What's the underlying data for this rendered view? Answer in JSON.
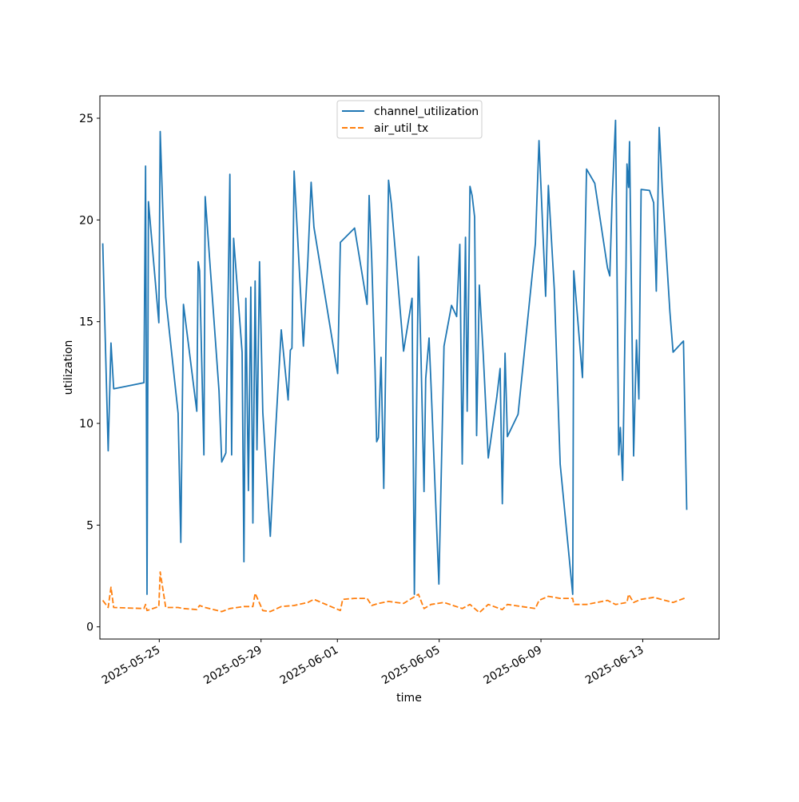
{
  "chart_data": {
    "type": "line",
    "xlabel": "time",
    "ylabel": "utilization",
    "xlim": [
      "2025-05-22T16:00",
      "2025-06-16T00:00"
    ],
    "ylim": [
      -0.6,
      26.1
    ],
    "x_tick_labels": [
      "2025-05-25",
      "2025-05-29",
      "2025-06-01",
      "2025-06-05",
      "2025-06-09",
      "2025-06-13"
    ],
    "x_ticks": [
      "2025-05-25",
      "2025-05-29",
      "2025-06-01",
      "2025-06-05",
      "2025-06-09",
      "2025-06-13"
    ],
    "y_ticks": [
      0,
      5,
      10,
      15,
      20,
      25
    ],
    "grid": false,
    "legend_position": "top-center",
    "series": [
      {
        "name": "channel_utilization",
        "color": "#1f77b4",
        "style": "solid",
        "points": [
          [
            "2025-05-22T18:41",
            18.85
          ],
          [
            "2025-05-22T23:50",
            8.65
          ],
          [
            "2025-05-23T02:27",
            13.95
          ],
          [
            "2025-05-23T05:01",
            11.7
          ],
          [
            "2025-05-24T09:30",
            12.0
          ],
          [
            "2025-05-24T11:07",
            22.65
          ],
          [
            "2025-05-24T12:27",
            1.6
          ],
          [
            "2025-05-24T13:47",
            20.9
          ],
          [
            "2025-05-24T23:36",
            14.95
          ],
          [
            "2025-05-25T00:55",
            24.35
          ],
          [
            "2025-05-25T06:05",
            16.2
          ],
          [
            "2025-05-25T17:47",
            10.5
          ],
          [
            "2025-05-25T20:21",
            4.15
          ],
          [
            "2025-05-25T22:48",
            15.85
          ],
          [
            "2025-05-26T11:25",
            10.6
          ],
          [
            "2025-05-26T12:43",
            17.95
          ],
          [
            "2025-05-26T14:02",
            17.5
          ],
          [
            "2025-05-26T18:05",
            8.45
          ],
          [
            "2025-05-26T19:21",
            21.15
          ],
          [
            "2025-05-27T08:21",
            11.6
          ],
          [
            "2025-05-27T10:57",
            8.1
          ],
          [
            "2025-05-27T14:48",
            8.55
          ],
          [
            "2025-05-27T18:38",
            22.25
          ],
          [
            "2025-05-27T20:17",
            8.45
          ],
          [
            "2025-05-27T22:10",
            19.1
          ],
          [
            "2025-05-28T06:07",
            13.5
          ],
          [
            "2025-05-28T07:50",
            3.2
          ],
          [
            "2025-05-28T09:42",
            16.15
          ],
          [
            "2025-05-28T12:05",
            6.7
          ],
          [
            "2025-05-28T14:19",
            16.7
          ],
          [
            "2025-05-28T16:20",
            5.1
          ],
          [
            "2025-05-28T18:26",
            17.0
          ],
          [
            "2025-05-28T20:11",
            8.7
          ],
          [
            "2025-05-28T22:34",
            17.95
          ],
          [
            "2025-05-29T01:40",
            10.55
          ],
          [
            "2025-05-29T08:46",
            4.45
          ],
          [
            "2025-05-29T12:31",
            8.5
          ],
          [
            "2025-05-29T19:02",
            14.6
          ],
          [
            "2025-05-30T01:31",
            11.15
          ],
          [
            "2025-05-30T03:39",
            13.6
          ],
          [
            "2025-05-30T05:11",
            13.7
          ],
          [
            "2025-05-30T07:12",
            22.4
          ],
          [
            "2025-05-30T15:56",
            13.8
          ],
          [
            "2025-05-30T20:09",
            18.0
          ],
          [
            "2025-05-30T23:16",
            21.85
          ],
          [
            "2025-05-31T01:52",
            19.65
          ],
          [
            "2025-06-01T00:17",
            12.45
          ],
          [
            "2025-06-01T02:49",
            18.9
          ],
          [
            "2025-06-01T16:14",
            19.6
          ],
          [
            "2025-06-02T03:59",
            15.85
          ],
          [
            "2025-06-02T05:58",
            21.2
          ],
          [
            "2025-06-02T08:23",
            18.1
          ],
          [
            "2025-06-02T11:33",
            12.65
          ],
          [
            "2025-06-02T13:03",
            9.1
          ],
          [
            "2025-06-02T14:39",
            9.3
          ],
          [
            "2025-06-02T17:10",
            13.25
          ],
          [
            "2025-06-02T19:44",
            6.8
          ],
          [
            "2025-06-03T00:15",
            21.95
          ],
          [
            "2025-06-03T02:52",
            20.8
          ],
          [
            "2025-06-03T14:24",
            13.55
          ],
          [
            "2025-06-03T22:24",
            16.15
          ],
          [
            "2025-06-04T00:36",
            1.6
          ],
          [
            "2025-06-04T04:27",
            18.2
          ],
          [
            "2025-06-04T06:52",
            13.3
          ],
          [
            "2025-06-04T09:45",
            6.65
          ],
          [
            "2025-06-04T11:20",
            12.2
          ],
          [
            "2025-06-04T14:29",
            14.2
          ],
          [
            "2025-06-04T16:21",
            11.85
          ],
          [
            "2025-06-04T23:43",
            2.1
          ],
          [
            "2025-06-05T04:33",
            13.8
          ],
          [
            "2025-06-05T11:38",
            15.8
          ],
          [
            "2025-06-05T16:26",
            15.25
          ],
          [
            "2025-06-05T19:28",
            18.8
          ],
          [
            "2025-06-05T21:44",
            8.0
          ],
          [
            "2025-06-06T00:49",
            19.15
          ],
          [
            "2025-06-06T02:24",
            10.6
          ],
          [
            "2025-06-06T05:04",
            21.65
          ],
          [
            "2025-06-06T07:06",
            21.2
          ],
          [
            "2025-06-06T09:25",
            20.15
          ],
          [
            "2025-06-06T11:17",
            9.4
          ],
          [
            "2025-06-06T13:53",
            16.8
          ],
          [
            "2025-06-06T17:32",
            13.4
          ],
          [
            "2025-06-06T22:16",
            8.3
          ],
          [
            "2025-06-07T06:22",
            11.3
          ],
          [
            "2025-06-07T09:25",
            12.7
          ],
          [
            "2025-06-07T11:35",
            6.05
          ],
          [
            "2025-06-07T14:06",
            13.45
          ],
          [
            "2025-06-07T16:19",
            9.35
          ],
          [
            "2025-06-08T02:25",
            10.45
          ],
          [
            "2025-06-08T18:47",
            18.85
          ],
          [
            "2025-06-08T22:10",
            23.9
          ],
          [
            "2025-06-09T04:24",
            16.25
          ],
          [
            "2025-06-09T06:57",
            21.7
          ],
          [
            "2025-06-09T12:38",
            16.55
          ],
          [
            "2025-06-09T18:05",
            8.0
          ],
          [
            "2025-06-10T05:55",
            1.6
          ],
          [
            "2025-06-10T06:54",
            17.5
          ],
          [
            "2025-06-10T15:08",
            12.25
          ],
          [
            "2025-06-10T19:00",
            22.5
          ],
          [
            "2025-06-11T02:47",
            21.8
          ],
          [
            "2025-06-11T14:43",
            17.65
          ],
          [
            "2025-06-11T16:55",
            17.25
          ],
          [
            "2025-06-11T19:10",
            21.1
          ],
          [
            "2025-06-11T22:20",
            24.9
          ],
          [
            "2025-06-12T01:22",
            8.45
          ],
          [
            "2025-06-12T02:52",
            9.8
          ],
          [
            "2025-06-12T05:05",
            7.2
          ],
          [
            "2025-06-12T08:13",
            17.7
          ],
          [
            "2025-06-12T09:09",
            22.75
          ],
          [
            "2025-06-12T10:39",
            21.6
          ],
          [
            "2025-06-12T11:32",
            23.85
          ],
          [
            "2025-06-12T15:24",
            8.4
          ],
          [
            "2025-06-12T18:05",
            14.1
          ],
          [
            "2025-06-12T20:21",
            11.2
          ],
          [
            "2025-06-12T22:29",
            21.5
          ],
          [
            "2025-06-13T06:23",
            21.45
          ],
          [
            "2025-06-13T10:15",
            20.85
          ],
          [
            "2025-06-13T12:47",
            16.5
          ],
          [
            "2025-06-13T15:29",
            24.55
          ],
          [
            "2025-06-13T18:19",
            21.6
          ],
          [
            "2025-06-14T01:33",
            15.5
          ],
          [
            "2025-06-14T04:35",
            13.5
          ],
          [
            "2025-06-14T14:25",
            14.05
          ],
          [
            "2025-06-14T17:28",
            5.75
          ]
        ]
      },
      {
        "name": "air_util_tx",
        "color": "#ff7f0e",
        "style": "dashed",
        "points": [
          [
            "2025-05-22T18:41",
            1.3
          ],
          [
            "2025-05-22T23:50",
            0.95
          ],
          [
            "2025-05-23T02:27",
            1.95
          ],
          [
            "2025-05-23T05:01",
            0.95
          ],
          [
            "2025-05-24T09:30",
            0.9
          ],
          [
            "2025-05-24T11:07",
            1.1
          ],
          [
            "2025-05-24T12:27",
            0.8
          ],
          [
            "2025-05-24T23:36",
            1.0
          ],
          [
            "2025-05-25T00:55",
            2.7
          ],
          [
            "2025-05-25T06:05",
            0.95
          ],
          [
            "2025-05-25T17:47",
            0.95
          ],
          [
            "2025-05-25T22:48",
            0.9
          ],
          [
            "2025-05-26T11:25",
            0.85
          ],
          [
            "2025-05-26T14:02",
            1.05
          ],
          [
            "2025-05-26T19:21",
            0.95
          ],
          [
            "2025-05-27T10:57",
            0.75
          ],
          [
            "2025-05-27T18:38",
            0.9
          ],
          [
            "2025-05-28T07:50",
            1.0
          ],
          [
            "2025-05-28T16:20",
            1.0
          ],
          [
            "2025-05-28T18:26",
            1.65
          ],
          [
            "2025-05-29T01:40",
            0.8
          ],
          [
            "2025-05-29T08:46",
            0.75
          ],
          [
            "2025-05-29T19:02",
            1.0
          ],
          [
            "2025-05-30T07:12",
            1.05
          ],
          [
            "2025-05-30T20:09",
            1.2
          ],
          [
            "2025-05-31T01:52",
            1.35
          ],
          [
            "2025-06-01T02:49",
            0.8
          ],
          [
            "2025-06-01T05:00",
            1.35
          ],
          [
            "2025-06-01T16:14",
            1.4
          ],
          [
            "2025-06-02T03:59",
            1.4
          ],
          [
            "2025-06-02T08:23",
            1.05
          ],
          [
            "2025-06-02T14:39",
            1.15
          ],
          [
            "2025-06-03T00:15",
            1.25
          ],
          [
            "2025-06-03T14:24",
            1.15
          ],
          [
            "2025-06-04T04:27",
            1.6
          ],
          [
            "2025-06-04T09:45",
            0.9
          ],
          [
            "2025-06-04T16:21",
            1.1
          ],
          [
            "2025-06-05T04:33",
            1.2
          ],
          [
            "2025-06-05T21:44",
            0.9
          ],
          [
            "2025-06-06T05:04",
            1.1
          ],
          [
            "2025-06-06T13:53",
            0.7
          ],
          [
            "2025-06-06T22:16",
            1.1
          ],
          [
            "2025-06-07T11:35",
            0.85
          ],
          [
            "2025-06-07T16:19",
            1.1
          ],
          [
            "2025-06-08T18:47",
            0.9
          ],
          [
            "2025-06-08T22:10",
            1.3
          ],
          [
            "2025-06-09T06:57",
            1.5
          ],
          [
            "2025-06-09T18:05",
            1.4
          ],
          [
            "2025-06-10T05:55",
            1.4
          ],
          [
            "2025-06-10T06:54",
            1.1
          ],
          [
            "2025-06-10T19:00",
            1.1
          ],
          [
            "2025-06-11T14:43",
            1.3
          ],
          [
            "2025-06-11T22:20",
            1.1
          ],
          [
            "2025-06-12T09:09",
            1.2
          ],
          [
            "2025-06-12T10:39",
            1.6
          ],
          [
            "2025-06-12T15:24",
            1.2
          ],
          [
            "2025-06-12T22:29",
            1.35
          ],
          [
            "2025-06-13T10:15",
            1.45
          ],
          [
            "2025-06-14T04:35",
            1.2
          ],
          [
            "2025-06-14T17:28",
            1.45
          ]
        ]
      }
    ]
  }
}
